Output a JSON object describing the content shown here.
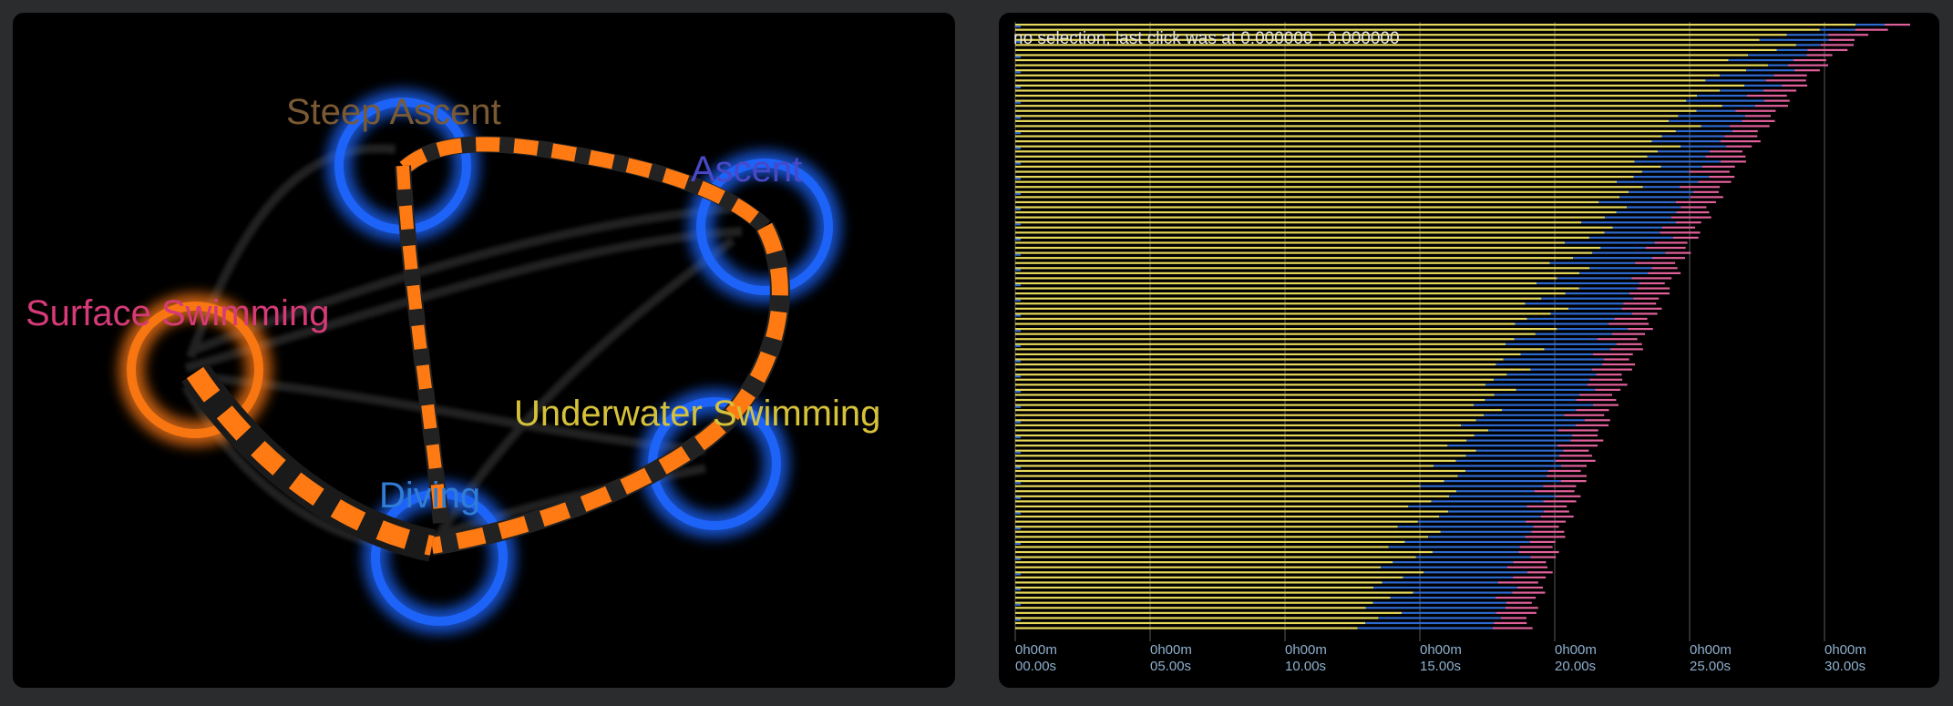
{
  "graph": {
    "nodes": [
      {
        "id": "steep-ascent",
        "label": "Steep Ascent",
        "label_color": "#7a5a34",
        "ring_color": "#1e66ff"
      },
      {
        "id": "ascent",
        "label": "Ascent",
        "label_color": "#4848c8",
        "ring_color": "#1e66ff"
      },
      {
        "id": "surface-swimming",
        "label": "Surface Swimming",
        "label_color": "#d63a78",
        "ring_color": "#ff7a12"
      },
      {
        "id": "underwater-swimming",
        "label": "Underwater Swimming",
        "label_color": "#d6c23a",
        "ring_color": "#1e66ff"
      },
      {
        "id": "diving",
        "label": "Diving",
        "label_color": "#2f7dd6",
        "ring_color": "#1e66ff"
      }
    ],
    "edge_color": "#ff7a12"
  },
  "timeline": {
    "status": "no selection, last click was at 0.000000 , 0.000000",
    "ticks": [
      {
        "line1": "0h00m",
        "line2": "00.00s"
      },
      {
        "line1": "0h00m",
        "line2": "05.00s"
      },
      {
        "line1": "0h00m",
        "line2": "10.00s"
      },
      {
        "line1": "0h00m",
        "line2": "15.00s"
      },
      {
        "line1": "0h00m",
        "line2": "20.00s"
      },
      {
        "line1": "0h00m",
        "line2": "25.00s"
      },
      {
        "line1": "0h00m",
        "line2": "30.00s"
      }
    ],
    "segment_colors": {
      "primary": "#e6d85a",
      "secondary": "#2f6ad0",
      "tail": "#e0609a"
    }
  }
}
